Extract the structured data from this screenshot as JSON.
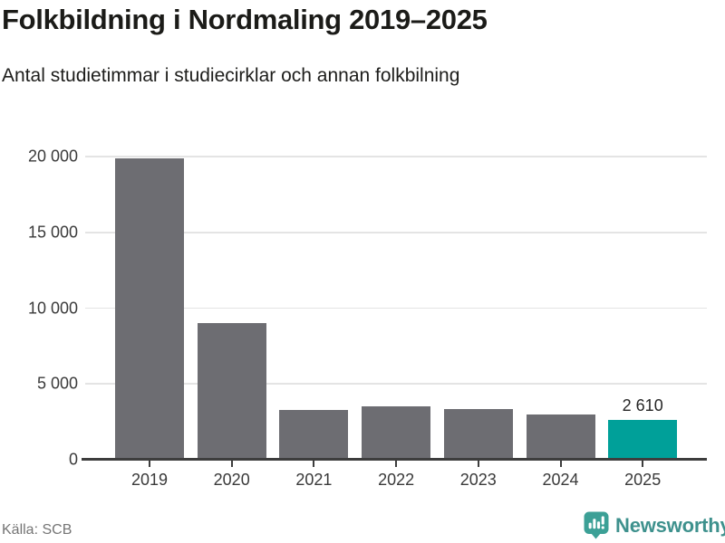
{
  "header": {
    "title": "Folkbildning i Nordmaling 2019–2025",
    "subtitle": "Antal studietimmar i studiecirklar och annan folkbilning"
  },
  "footer": {
    "source": "Källa: SCB",
    "brand_name": "Newsworthy",
    "brand_icon": "newsworthy-chart-bubble-icon"
  },
  "colors": {
    "bar_default": "#6d6d72",
    "bar_highlight": "#00a099",
    "gridline": "#e4e4e4",
    "axis": "#3d3d3d",
    "brand_teal": "#3ca096"
  },
  "chart_data": {
    "type": "bar",
    "title": "Folkbildning i Nordmaling 2019–2025",
    "subtitle": "Antal studietimmar i studiecirklar och annan folkbilning",
    "categories": [
      "2019",
      "2020",
      "2021",
      "2022",
      "2023",
      "2024",
      "2025"
    ],
    "values": [
      19900,
      9000,
      3300,
      3500,
      3350,
      3000,
      2610
    ],
    "value_labels": [
      "",
      "",
      "",
      "",
      "",
      "",
      "2 610"
    ],
    "bar_colors": [
      "#6d6d72",
      "#6d6d72",
      "#6d6d72",
      "#6d6d72",
      "#6d6d72",
      "#6d6d72",
      "#00a099"
    ],
    "highlight_index": 6,
    "xlabel": "",
    "ylabel": "",
    "ylim": [
      0,
      20000
    ],
    "ytick_values": [
      0,
      5000,
      10000,
      15000,
      20000
    ],
    "ytick_labels": [
      "0",
      "5 000",
      "10 000",
      "15 000",
      "20 000"
    ],
    "grid": true,
    "legend_position": "none",
    "source": "Källa: SCB"
  }
}
